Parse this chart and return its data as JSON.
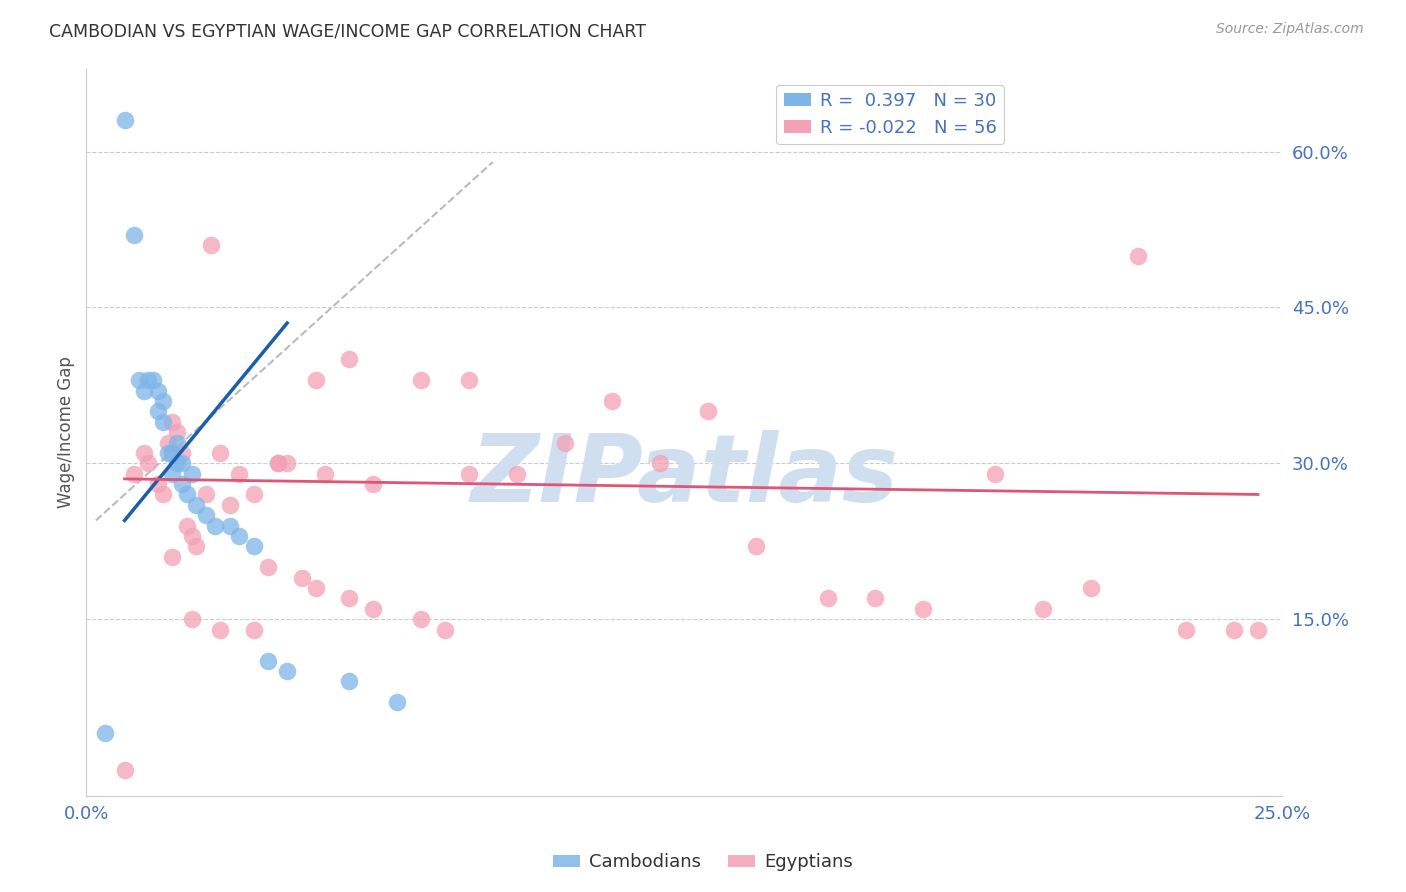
{
  "title": "CAMBODIAN VS EGYPTIAN WAGE/INCOME GAP CORRELATION CHART",
  "source": "Source: ZipAtlas.com",
  "ylabel": "Wage/Income Gap",
  "x_label_0": "0.0%",
  "x_label_end": "25.0%",
  "y_ticks_right": [
    0.15,
    0.3,
    0.45,
    0.6
  ],
  "y_tick_labels_right": [
    "15.0%",
    "30.0%",
    "45.0%",
    "60.0%"
  ],
  "xlim": [
    0.0,
    0.25
  ],
  "ylim": [
    -0.02,
    0.68
  ],
  "cambodian_color": "#7EB5E8",
  "egyptian_color": "#F4A0B5",
  "blue_line_color": "#1B5FAA",
  "pink_line_color": "#E05575",
  "ref_line_color": "#BBBBBB",
  "watermark": "ZIPatlas",
  "watermark_color": "#D0DFF0",
  "legend_R_cambodian": "R =  0.397",
  "legend_N_cambodian": "N = 30",
  "legend_R_egyptian": "R = -0.022",
  "legend_N_egyptian": "N = 56",
  "cambodian_x": [
    0.004,
    0.008,
    0.01,
    0.011,
    0.012,
    0.013,
    0.014,
    0.015,
    0.015,
    0.016,
    0.016,
    0.017,
    0.018,
    0.018,
    0.019,
    0.019,
    0.02,
    0.02,
    0.021,
    0.022,
    0.023,
    0.025,
    0.027,
    0.03,
    0.032,
    0.035,
    0.038,
    0.042,
    0.055,
    0.065
  ],
  "cambodian_y": [
    0.04,
    0.63,
    0.52,
    0.38,
    0.37,
    0.38,
    0.38,
    0.35,
    0.37,
    0.36,
    0.34,
    0.31,
    0.31,
    0.29,
    0.3,
    0.32,
    0.3,
    0.28,
    0.27,
    0.29,
    0.26,
    0.25,
    0.24,
    0.24,
    0.23,
    0.22,
    0.11,
    0.1,
    0.09,
    0.07
  ],
  "egyptian_x": [
    0.008,
    0.01,
    0.012,
    0.013,
    0.015,
    0.016,
    0.017,
    0.018,
    0.019,
    0.02,
    0.021,
    0.022,
    0.023,
    0.025,
    0.026,
    0.028,
    0.03,
    0.032,
    0.035,
    0.038,
    0.04,
    0.042,
    0.045,
    0.048,
    0.05,
    0.055,
    0.06,
    0.07,
    0.075,
    0.08,
    0.09,
    0.1,
    0.11,
    0.12,
    0.13,
    0.14,
    0.155,
    0.165,
    0.175,
    0.19,
    0.2,
    0.21,
    0.22,
    0.23,
    0.24,
    0.245,
    0.018,
    0.022,
    0.028,
    0.035,
    0.04,
    0.048,
    0.055,
    0.06,
    0.07,
    0.08
  ],
  "egyptian_y": [
    0.005,
    0.29,
    0.31,
    0.3,
    0.28,
    0.27,
    0.32,
    0.34,
    0.33,
    0.31,
    0.24,
    0.23,
    0.22,
    0.27,
    0.51,
    0.31,
    0.26,
    0.29,
    0.27,
    0.2,
    0.3,
    0.3,
    0.19,
    0.38,
    0.29,
    0.4,
    0.28,
    0.15,
    0.14,
    0.38,
    0.29,
    0.32,
    0.36,
    0.3,
    0.35,
    0.22,
    0.17,
    0.17,
    0.16,
    0.29,
    0.16,
    0.18,
    0.5,
    0.14,
    0.14,
    0.14,
    0.21,
    0.15,
    0.14,
    0.14,
    0.3,
    0.18,
    0.17,
    0.16,
    0.38,
    0.29
  ],
  "blue_line_x": [
    0.008,
    0.042
  ],
  "blue_line_y": [
    0.245,
    0.435
  ],
  "pink_line_x": [
    0.008,
    0.245
  ],
  "pink_line_y": [
    0.285,
    0.27
  ],
  "ref_line_x": [
    0.002,
    0.085
  ],
  "ref_line_y": [
    0.245,
    0.59
  ]
}
